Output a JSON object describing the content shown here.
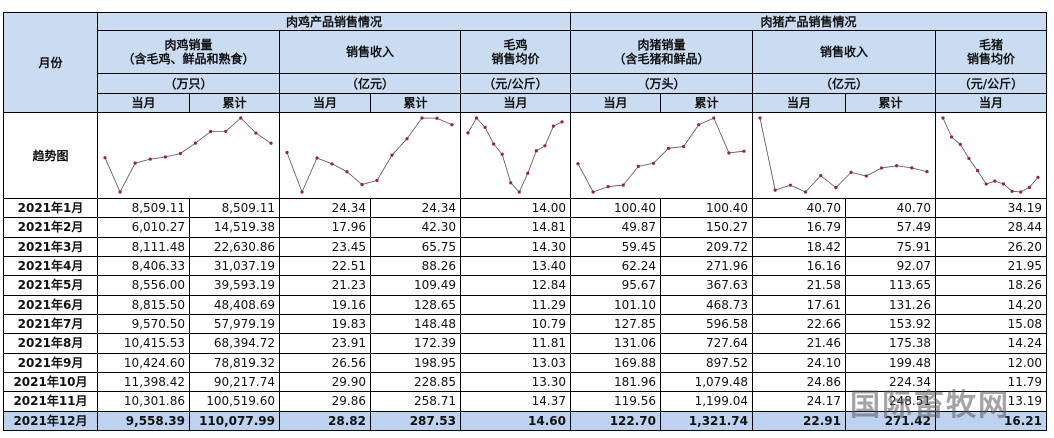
{
  "header": {
    "month": "月份",
    "trend": "趋势图",
    "groups": [
      {
        "title": "肉鸡产品销售情况",
        "columns": [
          {
            "name": [
              "肉鸡销量",
              "（含毛鸡、鲜品和熟食）"
            ],
            "unit": "（万只）",
            "sub": [
              "当月",
              "累计"
            ]
          },
          {
            "name": [
              "销售收入"
            ],
            "unit": "（亿元）",
            "sub": [
              "当月",
              "累计"
            ]
          },
          {
            "name": [
              "毛鸡",
              "销售均价"
            ],
            "unit": "（元/公斤）",
            "sub": [
              "当月"
            ]
          }
        ]
      },
      {
        "title": "肉猪产品销售情况",
        "columns": [
          {
            "name": [
              "肉猪销量",
              "（含毛猪和鲜品）"
            ],
            "unit": "（万头）",
            "sub": [
              "当月",
              "累计"
            ]
          },
          {
            "name": [
              "销售收入"
            ],
            "unit": "（亿元）",
            "sub": [
              "当月",
              "累计"
            ]
          },
          {
            "name": [
              "毛猪",
              "销售均价"
            ],
            "unit": "（元/公斤）",
            "sub": [
              "当月"
            ]
          }
        ]
      }
    ]
  },
  "table": {
    "rows": [
      [
        "2021年1月",
        "8,509.11",
        "8,509.11",
        "24.34",
        "24.34",
        "14.00",
        "100.40",
        "100.40",
        "40.70",
        "40.70",
        "34.19"
      ],
      [
        "2021年2月",
        "6,010.27",
        "14,519.38",
        "17.96",
        "42.30",
        "14.81",
        "49.87",
        "150.27",
        "16.79",
        "57.49",
        "28.44"
      ],
      [
        "2021年3月",
        "8,111.48",
        "22,630.86",
        "23.45",
        "65.75",
        "14.30",
        "59.45",
        "209.72",
        "18.42",
        "75.91",
        "26.20"
      ],
      [
        "2021年4月",
        "8,406.33",
        "31,037.19",
        "22.51",
        "88.26",
        "13.40",
        "62.24",
        "271.96",
        "16.16",
        "92.07",
        "21.95"
      ],
      [
        "2021年5月",
        "8,556.00",
        "39,593.19",
        "21.23",
        "109.49",
        "12.84",
        "95.67",
        "367.63",
        "21.58",
        "113.65",
        "18.26"
      ],
      [
        "2021年6月",
        "8,815.50",
        "48,408.69",
        "19.16",
        "128.65",
        "11.29",
        "101.10",
        "468.73",
        "17.61",
        "131.26",
        "14.20"
      ],
      [
        "2021年7月",
        "9,570.50",
        "57,979.19",
        "19.83",
        "148.48",
        "10.79",
        "127.85",
        "596.58",
        "22.66",
        "153.92",
        "15.08"
      ],
      [
        "2021年8月",
        "10,415.53",
        "68,394.72",
        "23.91",
        "172.39",
        "11.81",
        "131.06",
        "727.64",
        "21.46",
        "175.38",
        "14.24"
      ],
      [
        "2021年9月",
        "10,424.60",
        "78,819.32",
        "26.56",
        "198.95",
        "13.03",
        "169.88",
        "897.52",
        "24.10",
        "199.48",
        "12.00"
      ],
      [
        "2021年10月",
        "11,398.42",
        "90,217.74",
        "29.90",
        "228.85",
        "13.30",
        "181.96",
        "1,079.48",
        "24.86",
        "224.34",
        "11.79"
      ],
      [
        "2021年11月",
        "10,301.86",
        "100,519.60",
        "29.86",
        "258.71",
        "14.37",
        "119.56",
        "1,199.04",
        "24.17",
        "248.51",
        "13.19"
      ],
      [
        "2021年12月",
        "9,558.39",
        "110,077.99",
        "28.82",
        "287.53",
        "14.60",
        "122.70",
        "1,321.74",
        "22.91",
        "271.42",
        "16.21"
      ]
    ]
  },
  "watermark": "国际畜牧网"
}
